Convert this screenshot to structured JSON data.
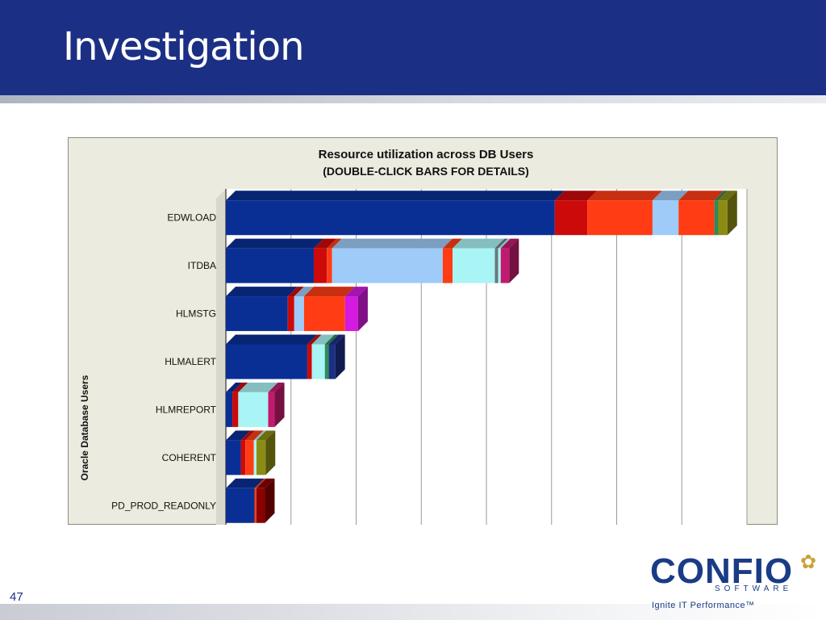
{
  "slide": {
    "title": "Investigation",
    "page_number": "47",
    "logo": {
      "name": "CONFIO",
      "sub": "SOFTWARE",
      "tagline": "Ignite IT Performance™",
      "icon": "flower-icon"
    }
  },
  "colors": {
    "header_bg": "#1b2f85",
    "segment_palette": [
      "#0a2f94",
      "#cc0a0a",
      "#ff3c14",
      "#9ecbf8",
      "#a9f4f4",
      "#c21a6e",
      "#2e8b57",
      "#8c8c14",
      "#d41adf",
      "#6a7a7a",
      "#1b2f85"
    ]
  },
  "chart_data": {
    "type": "bar",
    "orientation": "horizontal",
    "stacked": true,
    "style": "3d",
    "title": "Resource utilization across DB Users",
    "subtitle": "(DOUBLE-CLICK BARS FOR DETAILS)",
    "ylabel": "Oracle Database Users",
    "xlabel": "",
    "categories": [
      "EDWLOAD",
      "ITDBA",
      "HLMSTG",
      "HLMALERT",
      "HLMREPORT",
      "COHERENT",
      "PD_PROD_READONLY"
    ],
    "segments": [
      [
        {
          "value": 50.5,
          "color": "#0a2f94"
        },
        {
          "value": 5,
          "color": "#cc0a0a"
        },
        {
          "value": 10,
          "color": "#ff3c14"
        },
        {
          "value": 4,
          "color": "#9ecbf8"
        },
        {
          "value": 5.5,
          "color": "#ff3c14"
        },
        {
          "value": 0.6,
          "color": "#2e8b57"
        },
        {
          "value": 1.4,
          "color": "#8c8c14"
        }
      ],
      [
        {
          "value": 13.5,
          "color": "#0a2f94"
        },
        {
          "value": 2,
          "color": "#cc0a0a"
        },
        {
          "value": 0.8,
          "color": "#ff3c14"
        },
        {
          "value": 17,
          "color": "#9ecbf8"
        },
        {
          "value": 1.5,
          "color": "#ff3c14"
        },
        {
          "value": 6.5,
          "color": "#a9f4f4"
        },
        {
          "value": 0.5,
          "color": "#6a7a7a"
        },
        {
          "value": 0.4,
          "color": "#a9f4f4"
        },
        {
          "value": 1.3,
          "color": "#c21a6e"
        }
      ],
      [
        {
          "value": 9.5,
          "color": "#0a2f94"
        },
        {
          "value": 1,
          "color": "#cc0a0a"
        },
        {
          "value": 1.5,
          "color": "#9ecbf8"
        },
        {
          "value": 6.3,
          "color": "#ff3c14"
        },
        {
          "value": 2,
          "color": "#d41adf"
        }
      ],
      [
        {
          "value": 12.5,
          "color": "#0a2f94"
        },
        {
          "value": 0.7,
          "color": "#cc0a0a"
        },
        {
          "value": 2,
          "color": "#a9f4f4"
        },
        {
          "value": 0.6,
          "color": "#2e8b57"
        },
        {
          "value": 1,
          "color": "#1b2f85"
        }
      ],
      [
        {
          "value": 1,
          "color": "#0a2f94"
        },
        {
          "value": 0.9,
          "color": "#cc0a0a"
        },
        {
          "value": 4.6,
          "color": "#a9f4f4"
        },
        {
          "value": 1,
          "color": "#c21a6e"
        }
      ],
      [
        {
          "value": 2.3,
          "color": "#0a2f94"
        },
        {
          "value": 0.7,
          "color": "#cc0a0a"
        },
        {
          "value": 1.3,
          "color": "#ff3c14"
        },
        {
          "value": 0.4,
          "color": "#a9f4f4"
        },
        {
          "value": 1.4,
          "color": "#8c8c14"
        }
      ],
      [
        {
          "value": 4.4,
          "color": "#0a2f94"
        },
        {
          "value": 0.3,
          "color": "#ff3c14"
        },
        {
          "value": 1.3,
          "color": "#8b0000"
        }
      ]
    ],
    "xlim": [
      0,
      80
    ],
    "x_gridlines": [
      0,
      10,
      20,
      30,
      40,
      50,
      60,
      70,
      80
    ],
    "grid": true,
    "tick_labels_x": false
  }
}
